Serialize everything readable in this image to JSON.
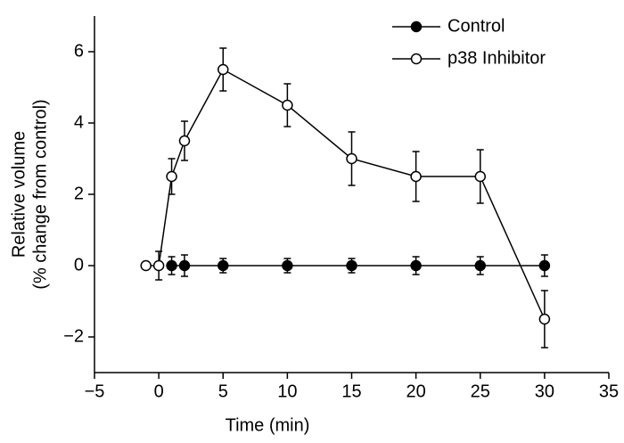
{
  "chart_data": {
    "type": "line",
    "xlabel": "Time (min)",
    "ylabel": [
      "Relative volume",
      "(% change from control)"
    ],
    "xlim": [
      -5,
      35
    ],
    "xticks": [
      {
        "value": -5,
        "label": "−5"
      },
      0,
      5,
      10,
      15,
      20,
      25,
      30,
      35
    ],
    "ylim": [
      -3,
      7
    ],
    "yticks": [
      {
        "value": -2,
        "label": "−2"
      },
      0,
      2,
      4,
      6
    ],
    "legend": "upper right",
    "series": [
      {
        "name": "Control",
        "color": "#000000",
        "marker": "filled",
        "x": [
          1,
          2,
          5,
          10,
          15,
          20,
          25,
          30
        ],
        "values": [
          0,
          0,
          0,
          0,
          0,
          0,
          0,
          0
        ],
        "errors": [
          0.25,
          0.3,
          0.2,
          0.2,
          0.2,
          0.25,
          0.25,
          0.3
        ]
      },
      {
        "name": "p38 Inhibitor",
        "color": "#000000",
        "marker": "open",
        "x": [
          -1,
          0,
          1,
          2,
          5,
          10,
          15,
          20,
          25,
          30
        ],
        "values": [
          0,
          0,
          2.5,
          3.5,
          5.5,
          4.5,
          3,
          2.5,
          2.5,
          -1.5
        ],
        "errors": [
          null,
          0.4,
          0.5,
          0.55,
          0.6,
          0.6,
          0.75,
          0.7,
          0.75,
          0.8
        ]
      }
    ]
  }
}
